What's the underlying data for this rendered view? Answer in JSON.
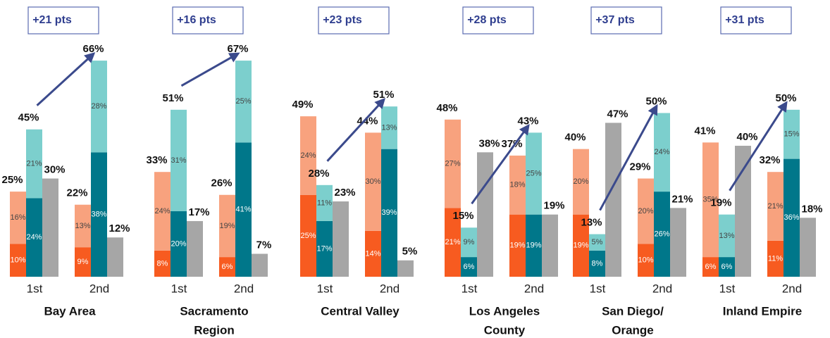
{
  "chart_data": [
    {
      "type": "bar",
      "title_lines": [
        "Bay Area"
      ],
      "annotation": "+21 pts",
      "categories": [
        "1st",
        "2nd"
      ],
      "series": [
        {
          "stack": 0,
          "color": "#f75b20",
          "label_color": "#ffffff",
          "values": [
            10,
            9
          ],
          "value_labels": [
            "10%",
            "9%"
          ]
        },
        {
          "stack": 0,
          "color": "#f8a27e",
          "label_color": "#444444",
          "values": [
            16,
            13
          ],
          "value_labels": [
            "16%",
            "13%"
          ]
        },
        {
          "stack": 1,
          "color": "#00778a",
          "label_color": "#ffffff",
          "values": [
            24,
            38
          ],
          "value_labels": [
            "24%",
            "38%"
          ]
        },
        {
          "stack": 1,
          "color": "#7ccfcd",
          "label_color": "#444444",
          "values": [
            21,
            28
          ],
          "value_labels": [
            "21%",
            "28%"
          ]
        },
        {
          "stack": 2,
          "color": "#a6a6a6",
          "label_position": "outside",
          "values": [
            30,
            12
          ],
          "value_labels": [
            "30%",
            "12%"
          ]
        }
      ],
      "totals": [
        {
          "stack": 0,
          "values": [
            25,
            22
          ],
          "value_labels": [
            "25%",
            "22%"
          ]
        },
        {
          "stack": 1,
          "values": [
            45,
            66
          ],
          "value_labels": [
            "45%",
            "66%"
          ]
        }
      ]
    },
    {
      "type": "bar",
      "title_lines": [
        "Sacramento",
        "Region"
      ],
      "annotation": "+16 pts",
      "categories": [
        "1st",
        "2nd"
      ],
      "series": [
        {
          "stack": 0,
          "color": "#f75b20",
          "label_color": "#ffffff",
          "values": [
            8,
            6
          ],
          "value_labels": [
            "8%",
            "6%"
          ]
        },
        {
          "stack": 0,
          "color": "#f8a27e",
          "label_color": "#444444",
          "values": [
            24,
            19
          ],
          "value_labels": [
            "24%",
            "19%"
          ]
        },
        {
          "stack": 1,
          "color": "#00778a",
          "label_color": "#ffffff",
          "values": [
            20,
            41
          ],
          "value_labels": [
            "20%",
            "41%"
          ]
        },
        {
          "stack": 1,
          "color": "#7ccfcd",
          "label_color": "#444444",
          "values": [
            31,
            25
          ],
          "value_labels": [
            "31%",
            "25%"
          ]
        },
        {
          "stack": 2,
          "color": "#a6a6a6",
          "label_position": "outside",
          "values": [
            17,
            7
          ],
          "value_labels": [
            "17%",
            "7%"
          ]
        }
      ],
      "totals": [
        {
          "stack": 0,
          "values": [
            33,
            26
          ],
          "value_labels": [
            "33%",
            "26%"
          ]
        },
        {
          "stack": 1,
          "values": [
            51,
            67
          ],
          "value_labels": [
            "51%",
            "67%"
          ]
        }
      ]
    },
    {
      "type": "bar",
      "title_lines": [
        "Central Valley"
      ],
      "annotation": "+23 pts",
      "categories": [
        "1st",
        "2nd"
      ],
      "series": [
        {
          "stack": 0,
          "color": "#f75b20",
          "label_color": "#ffffff",
          "values": [
            25,
            14
          ],
          "value_labels": [
            "25%",
            "14%"
          ]
        },
        {
          "stack": 0,
          "color": "#f8a27e",
          "label_color": "#444444",
          "values": [
            24,
            30
          ],
          "value_labels": [
            "24%",
            "30%"
          ]
        },
        {
          "stack": 1,
          "color": "#00778a",
          "label_color": "#ffffff",
          "values": [
            17,
            39
          ],
          "value_labels": [
            "17%",
            "39%"
          ]
        },
        {
          "stack": 1,
          "color": "#7ccfcd",
          "label_color": "#444444",
          "values": [
            11,
            13
          ],
          "value_labels": [
            "11%",
            "13%"
          ]
        },
        {
          "stack": 2,
          "color": "#a6a6a6",
          "label_position": "outside",
          "values": [
            23,
            5
          ],
          "value_labels": [
            "23%",
            "5%"
          ]
        }
      ],
      "totals": [
        {
          "stack": 0,
          "values": [
            49,
            44
          ],
          "value_labels": [
            "49%",
            "44%"
          ]
        },
        {
          "stack": 1,
          "values": [
            28,
            51
          ],
          "value_labels": [
            "28%",
            "51%"
          ]
        }
      ]
    },
    {
      "type": "bar",
      "title_lines": [
        "Los Angeles",
        "County"
      ],
      "annotation": "+28 pts",
      "categories": [
        "1st",
        "2nd"
      ],
      "series": [
        {
          "stack": 0,
          "color": "#f75b20",
          "label_color": "#ffffff",
          "values": [
            21,
            19
          ],
          "value_labels": [
            "21%",
            "19%"
          ]
        },
        {
          "stack": 0,
          "color": "#f8a27e",
          "label_color": "#444444",
          "values": [
            27,
            18
          ],
          "value_labels": [
            "27%",
            "18%"
          ]
        },
        {
          "stack": 1,
          "color": "#00778a",
          "label_color": "#ffffff",
          "values": [
            6,
            19
          ],
          "value_labels": [
            "6%",
            "19%"
          ]
        },
        {
          "stack": 1,
          "color": "#7ccfcd",
          "label_color": "#444444",
          "values": [
            9,
            25
          ],
          "value_labels": [
            "9%",
            "25%"
          ]
        },
        {
          "stack": 2,
          "color": "#a6a6a6",
          "label_position": "outside",
          "values": [
            38,
            19
          ],
          "value_labels": [
            "38%",
            "19%"
          ]
        }
      ],
      "totals": [
        {
          "stack": 0,
          "values": [
            48,
            37
          ],
          "value_labels": [
            "48%",
            "37%"
          ]
        },
        {
          "stack": 1,
          "values": [
            15,
            43
          ],
          "value_labels": [
            "15%",
            "43%"
          ]
        }
      ]
    },
    {
      "type": "bar",
      "title_lines": [
        "San Diego/",
        "Orange"
      ],
      "annotation": "+37 pts",
      "categories": [
        "1st",
        "2nd"
      ],
      "series": [
        {
          "stack": 0,
          "color": "#f75b20",
          "label_color": "#ffffff",
          "values": [
            19,
            10
          ],
          "value_labels": [
            "19%",
            "10%"
          ]
        },
        {
          "stack": 0,
          "color": "#f8a27e",
          "label_color": "#444444",
          "values": [
            20,
            20
          ],
          "value_labels": [
            "20%",
            "20%"
          ]
        },
        {
          "stack": 1,
          "color": "#00778a",
          "label_color": "#ffffff",
          "values": [
            8,
            26
          ],
          "value_labels": [
            "8%",
            "26%"
          ]
        },
        {
          "stack": 1,
          "color": "#7ccfcd",
          "label_color": "#444444",
          "values": [
            5,
            24
          ],
          "value_labels": [
            "5%",
            "24%"
          ]
        },
        {
          "stack": 2,
          "color": "#a6a6a6",
          "label_position": "outside",
          "values": [
            47,
            21
          ],
          "value_labels": [
            "47%",
            "21%"
          ]
        }
      ],
      "totals": [
        {
          "stack": 0,
          "values": [
            40,
            29
          ],
          "value_labels": [
            "40%",
            "29%"
          ]
        },
        {
          "stack": 1,
          "values": [
            13,
            50
          ],
          "value_labels": [
            "13%",
            "50%"
          ]
        }
      ]
    },
    {
      "type": "bar",
      "title_lines": [
        "Inland Empire"
      ],
      "annotation": "+31 pts",
      "categories": [
        "1st",
        "2nd"
      ],
      "series": [
        {
          "stack": 0,
          "color": "#f75b20",
          "label_color": "#ffffff",
          "values": [
            6,
            11
          ],
          "value_labels": [
            "6%",
            "11%"
          ]
        },
        {
          "stack": 0,
          "color": "#f8a27e",
          "label_color": "#444444",
          "values": [
            35,
            21
          ],
          "value_labels": [
            "35%",
            "21%"
          ]
        },
        {
          "stack": 1,
          "color": "#00778a",
          "label_color": "#ffffff",
          "values": [
            6,
            36
          ],
          "value_labels": [
            "6%",
            "36%"
          ]
        },
        {
          "stack": 1,
          "color": "#7ccfcd",
          "label_color": "#444444",
          "values": [
            13,
            15
          ],
          "value_labels": [
            "13%",
            "15%"
          ]
        },
        {
          "stack": 2,
          "color": "#a6a6a6",
          "label_position": "outside",
          "values": [
            40,
            18
          ],
          "value_labels": [
            "40%",
            "18%"
          ]
        }
      ],
      "totals": [
        {
          "stack": 0,
          "values": [
            41,
            32
          ],
          "value_labels": [
            "41%",
            "32%"
          ]
        },
        {
          "stack": 1,
          "values": [
            19,
            50
          ],
          "value_labels": [
            "19%",
            "50%"
          ]
        }
      ]
    }
  ]
}
